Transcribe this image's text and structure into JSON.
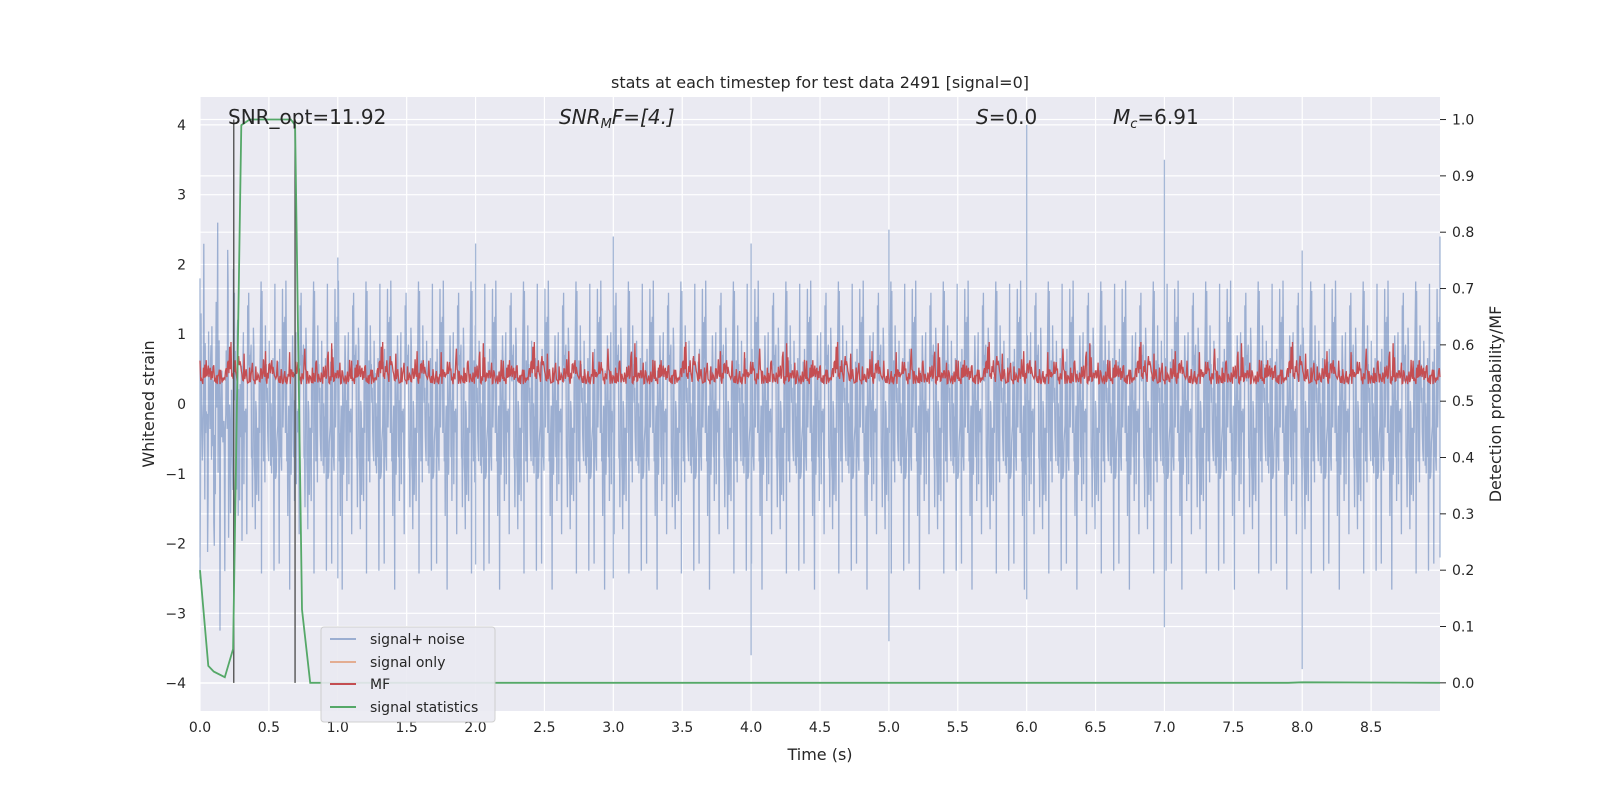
{
  "chart_data": {
    "type": "line",
    "title": "stats at each timestep for test data 2491 [signal=0]",
    "xlabel": "Time (s)",
    "ylabel_left": "Whitened strain",
    "ylabel_right": "Detection probability/MF",
    "xlim": [
      0.0,
      9.0
    ],
    "ylim_left": [
      -4.4,
      4.4
    ],
    "ylim_right": [
      -0.05,
      1.04
    ],
    "x_ticks": [
      "0.0",
      "0.5",
      "1.0",
      "1.5",
      "2.0",
      "2.5",
      "3.0",
      "3.5",
      "4.0",
      "4.5",
      "5.0",
      "5.5",
      "6.0",
      "6.5",
      "7.0",
      "7.5",
      "8.0",
      "8.5"
    ],
    "y_ticks_left": [
      "4",
      "3",
      "2",
      "1",
      "0",
      "−1",
      "−2",
      "−3",
      "−4"
    ],
    "y_ticks_right": [
      "1.0",
      "0.9",
      "0.8",
      "0.7",
      "0.6",
      "0.5",
      "0.4",
      "0.3",
      "0.2",
      "0.1",
      "0.0"
    ],
    "grid": true,
    "legend_position": "lower-left",
    "annotations": {
      "snr_opt": "SNR_opt=11.92",
      "snr_mf_base": "SNR",
      "snr_mf_sub": "M",
      "snr_mf_rest": "F=[4.]",
      "s_base": "S",
      "s_rest": "=0.0",
      "mc_base": "M",
      "mc_sub": "c",
      "mc_rest": "=6.91"
    },
    "series": [
      {
        "name": "signal+ noise",
        "color": "#4c72b0",
        "style": "dense noise, approx. range -3.7 to 4.0",
        "envelope_points": [
          [
            0.0,
            1.8,
            -2.2
          ],
          [
            1.0,
            2.1,
            -2.5
          ],
          [
            2.0,
            2.3,
            -2.3
          ],
          [
            3.0,
            2.4,
            -2.5
          ],
          [
            4.0,
            2.3,
            -3.6
          ],
          [
            5.0,
            2.5,
            -3.4
          ],
          [
            6.0,
            4.0,
            -2.8
          ],
          [
            7.0,
            3.5,
            -3.2
          ],
          [
            8.0,
            2.2,
            -3.8
          ],
          [
            9.0,
            2.4,
            -2.2
          ]
        ]
      },
      {
        "name": "signal only",
        "color": "#dd8452",
        "values": []
      },
      {
        "name": "MF",
        "color": "#c44e52",
        "axis": "right",
        "style": "approx. range 0.5 to 0.6"
      },
      {
        "name": "signal statistics",
        "color": "#55a868",
        "axis": "right",
        "x": [
          0.0,
          0.06,
          0.1,
          0.18,
          0.24,
          0.3,
          0.36,
          0.45,
          0.56,
          0.66,
          0.69,
          0.74,
          0.8,
          0.9,
          1.0,
          2.0,
          3.0,
          4.0,
          5.0,
          6.0,
          7.0,
          7.8,
          7.9,
          8.0,
          9.0
        ],
        "y": [
          0.2,
          0.03,
          0.02,
          0.01,
          0.06,
          0.99,
          1.0,
          1.0,
          1.0,
          1.0,
          0.99,
          0.13,
          0.0,
          0.0,
          0.0,
          0.0,
          0.0,
          0.0,
          0.0,
          0.0,
          0.0,
          0.0,
          0.0,
          0.001,
          0.0
        ]
      }
    ],
    "vertical_markers_s": [
      0.245,
      0.69
    ]
  },
  "legend": {
    "items": [
      {
        "label": "signal+ noise",
        "color": "#4c72b0"
      },
      {
        "label": "signal only",
        "color": "#dd8452"
      },
      {
        "label": "MF",
        "color": "#c44e52"
      },
      {
        "label": "signal statistics",
        "color": "#55a868"
      }
    ]
  }
}
